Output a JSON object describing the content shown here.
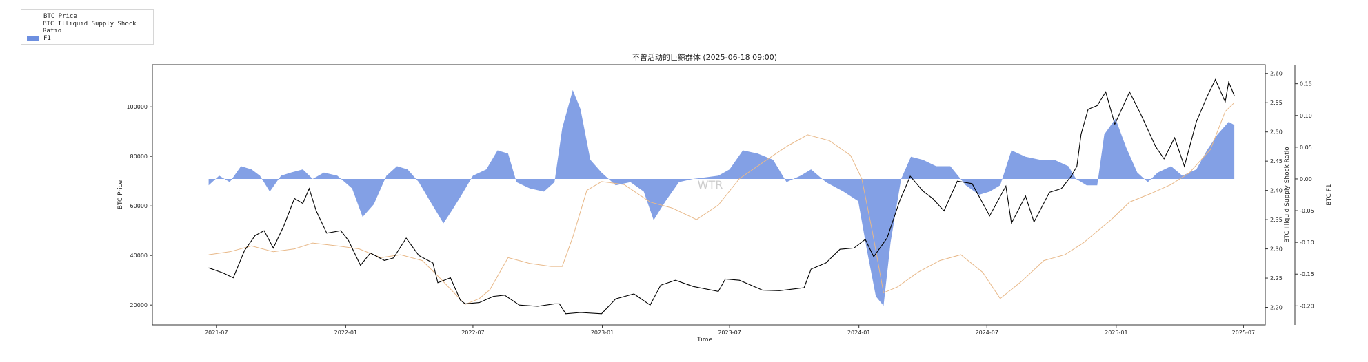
{
  "chart_data": {
    "type": "line",
    "title": "不曾活动的巨鲸群体 (2025-06-18 09:00)",
    "xlabel": "Time",
    "ylabel_left": "BTC Price",
    "ylabel_right1": "BTC Illiquid Supply Shock Ratio",
    "ylabel_right2": "BTC F1",
    "watermark": "WTR",
    "grid": false,
    "legend_placement": "outside-top-left",
    "x_ticks": [
      "2021-07",
      "2022-01",
      "2022-07",
      "2023-01",
      "2023-07",
      "2024-01",
      "2024-07",
      "2025-01",
      "2025-07"
    ],
    "y_left_ticks": [
      20000,
      40000,
      60000,
      80000,
      100000
    ],
    "y_left_tick_labels": [
      "20000",
      "40000",
      "60000",
      "80000",
      "100000"
    ],
    "y_right1_ticks": [
      2.2,
      2.25,
      2.3,
      2.35,
      2.4,
      2.45,
      2.5,
      2.55,
      2.6
    ],
    "y_right1_tick_labels": [
      "2.20",
      "2.25",
      "2.30",
      "2.35",
      "2.40",
      "2.45",
      "2.50",
      "2.55",
      "2.60"
    ],
    "y_right2_ticks": [
      -0.2,
      -0.15,
      -0.1,
      -0.05,
      0.0,
      0.05,
      0.1,
      0.15
    ],
    "y_right2_tick_labels": [
      "-0.20",
      "-0.15",
      "-0.10",
      "-0.05",
      "0.00",
      "0.05",
      "0.10",
      "0.15"
    ],
    "x_range": [
      "2021-04-01",
      "2025-08-01"
    ],
    "y_left_range": [
      12000,
      117000
    ],
    "y_right1_range": [
      2.17,
      2.615
    ],
    "y_right2_range": [
      -0.23,
      0.18
    ],
    "colors": {
      "price": "#000000",
      "ratio": "#e8b888",
      "f1": "#6d8fe0"
    },
    "series": [
      {
        "name": "BTC Price",
        "axis": "left",
        "style": "line",
        "points": [
          [
            "2021-06-20",
            35000
          ],
          [
            "2021-07-10",
            33000
          ],
          [
            "2021-07-25",
            31000
          ],
          [
            "2021-08-10",
            42000
          ],
          [
            "2021-08-25",
            48000
          ],
          [
            "2021-09-07",
            50000
          ],
          [
            "2021-09-20",
            43000
          ],
          [
            "2021-10-05",
            52000
          ],
          [
            "2021-10-20",
            63000
          ],
          [
            "2021-11-01",
            61000
          ],
          [
            "2021-11-10",
            67000
          ],
          [
            "2021-11-20",
            58000
          ],
          [
            "2021-12-05",
            49000
          ],
          [
            "2021-12-25",
            50000
          ],
          [
            "2022-01-05",
            46000
          ],
          [
            "2022-01-22",
            36000
          ],
          [
            "2022-02-05",
            41000
          ],
          [
            "2022-02-25",
            38000
          ],
          [
            "2022-03-10",
            39000
          ],
          [
            "2022-03-28",
            47000
          ],
          [
            "2022-04-15",
            40000
          ],
          [
            "2022-05-05",
            37000
          ],
          [
            "2022-05-12",
            29000
          ],
          [
            "2022-05-30",
            31000
          ],
          [
            "2022-06-13",
            22000
          ],
          [
            "2022-06-20",
            20500
          ],
          [
            "2022-07-10",
            21000
          ],
          [
            "2022-07-30",
            23500
          ],
          [
            "2022-08-15",
            24000
          ],
          [
            "2022-09-05",
            20000
          ],
          [
            "2022-10-01",
            19500
          ],
          [
            "2022-10-25",
            20500
          ],
          [
            "2022-11-01",
            20500
          ],
          [
            "2022-11-10",
            16500
          ],
          [
            "2022-12-01",
            17000
          ],
          [
            "2022-12-31",
            16500
          ],
          [
            "2023-01-20",
            22500
          ],
          [
            "2023-02-15",
            24500
          ],
          [
            "2023-03-10",
            20000
          ],
          [
            "2023-03-25",
            28000
          ],
          [
            "2023-04-15",
            30000
          ],
          [
            "2023-05-10",
            27500
          ],
          [
            "2023-06-15",
            25500
          ],
          [
            "2023-06-25",
            30500
          ],
          [
            "2023-07-15",
            30000
          ],
          [
            "2023-08-17",
            26000
          ],
          [
            "2023-09-10",
            25800
          ],
          [
            "2023-10-15",
            27000
          ],
          [
            "2023-10-25",
            34500
          ],
          [
            "2023-11-15",
            37000
          ],
          [
            "2023-12-05",
            42500
          ],
          [
            "2023-12-25",
            43000
          ],
          [
            "2024-01-10",
            46500
          ],
          [
            "2024-01-22",
            39500
          ],
          [
            "2024-02-10",
            47000
          ],
          [
            "2024-02-28",
            62000
          ],
          [
            "2024-03-14",
            72000
          ],
          [
            "2024-04-01",
            66000
          ],
          [
            "2024-04-15",
            63000
          ],
          [
            "2024-05-01",
            58000
          ],
          [
            "2024-05-20",
            70000
          ],
          [
            "2024-06-10",
            69000
          ],
          [
            "2024-07-05",
            56000
          ],
          [
            "2024-07-28",
            68000
          ],
          [
            "2024-08-05",
            53000
          ],
          [
            "2024-08-25",
            64000
          ],
          [
            "2024-09-06",
            53500
          ],
          [
            "2024-09-28",
            65500
          ],
          [
            "2024-10-15",
            67000
          ],
          [
            "2024-10-29",
            72000
          ],
          [
            "2024-11-06",
            76000
          ],
          [
            "2024-11-12",
            89000
          ],
          [
            "2024-11-22",
            99000
          ],
          [
            "2024-12-05",
            100500
          ],
          [
            "2024-12-17",
            106000
          ],
          [
            "2024-12-30",
            93000
          ],
          [
            "2025-01-20",
            106000
          ],
          [
            "2025-02-05",
            97000
          ],
          [
            "2025-02-26",
            84000
          ],
          [
            "2025-03-10",
            79000
          ],
          [
            "2025-03-25",
            87500
          ],
          [
            "2025-04-08",
            76000
          ],
          [
            "2025-04-25",
            94000
          ],
          [
            "2025-05-10",
            104000
          ],
          [
            "2025-05-22",
            111000
          ],
          [
            "2025-06-05",
            102000
          ],
          [
            "2025-06-10",
            110000
          ],
          [
            "2025-06-18",
            104500
          ]
        ]
      },
      {
        "name": "BTC Illiquid Supply Shock Ratio",
        "axis": "right1",
        "style": "line",
        "points": [
          [
            "2021-06-20",
            2.29
          ],
          [
            "2021-07-20",
            2.295
          ],
          [
            "2021-08-20",
            2.305
          ],
          [
            "2021-09-20",
            2.295
          ],
          [
            "2021-10-20",
            2.3
          ],
          [
            "2021-11-15",
            2.31
          ],
          [
            "2021-12-20",
            2.305
          ],
          [
            "2022-01-20",
            2.3
          ],
          [
            "2022-02-20",
            2.285
          ],
          [
            "2022-03-20",
            2.29
          ],
          [
            "2022-04-20",
            2.28
          ],
          [
            "2022-05-15",
            2.25
          ],
          [
            "2022-06-20",
            2.205
          ],
          [
            "2022-07-10",
            2.215
          ],
          [
            "2022-07-25",
            2.23
          ],
          [
            "2022-08-20",
            2.285
          ],
          [
            "2022-09-20",
            2.275
          ],
          [
            "2022-10-20",
            2.27
          ],
          [
            "2022-11-05",
            2.27
          ],
          [
            "2022-11-20",
            2.32
          ],
          [
            "2022-12-10",
            2.4
          ],
          [
            "2022-12-31",
            2.415
          ],
          [
            "2023-02-01",
            2.41
          ],
          [
            "2023-03-10",
            2.38
          ],
          [
            "2023-04-10",
            2.37
          ],
          [
            "2023-05-15",
            2.35
          ],
          [
            "2023-06-15",
            2.375
          ],
          [
            "2023-07-15",
            2.42
          ],
          [
            "2023-08-20",
            2.45
          ],
          [
            "2023-09-20",
            2.475
          ],
          [
            "2023-10-20",
            2.495
          ],
          [
            "2023-11-20",
            2.485
          ],
          [
            "2023-12-20",
            2.46
          ],
          [
            "2024-01-05",
            2.42
          ],
          [
            "2024-01-20",
            2.33
          ],
          [
            "2024-02-05",
            2.225
          ],
          [
            "2024-02-25",
            2.235
          ],
          [
            "2024-03-25",
            2.26
          ],
          [
            "2024-04-25",
            2.28
          ],
          [
            "2024-05-25",
            2.29
          ],
          [
            "2024-06-25",
            2.26
          ],
          [
            "2024-07-20",
            2.215
          ],
          [
            "2024-08-20",
            2.245
          ],
          [
            "2024-09-20",
            2.28
          ],
          [
            "2024-10-20",
            2.29
          ],
          [
            "2024-11-15",
            2.31
          ],
          [
            "2024-12-10",
            2.335
          ],
          [
            "2024-12-25",
            2.35
          ],
          [
            "2025-01-20",
            2.38
          ],
          [
            "2025-02-20",
            2.395
          ],
          [
            "2025-03-20",
            2.41
          ],
          [
            "2025-04-15",
            2.43
          ],
          [
            "2025-05-15",
            2.47
          ],
          [
            "2025-06-05",
            2.535
          ],
          [
            "2025-06-18",
            2.55
          ]
        ]
      },
      {
        "name": "F1",
        "axis": "right2",
        "style": "area",
        "points": [
          [
            "2021-06-20",
            -0.01
          ],
          [
            "2021-07-05",
            0.005
          ],
          [
            "2021-07-20",
            -0.005
          ],
          [
            "2021-08-05",
            0.02
          ],
          [
            "2021-08-20",
            0.015
          ],
          [
            "2021-09-01",
            0.005
          ],
          [
            "2021-09-15",
            -0.02
          ],
          [
            "2021-10-01",
            0.005
          ],
          [
            "2021-10-15",
            0.01
          ],
          [
            "2021-11-01",
            0.015
          ],
          [
            "2021-11-15",
            0.0
          ],
          [
            "2021-12-01",
            0.01
          ],
          [
            "2021-12-20",
            0.005
          ],
          [
            "2022-01-10",
            -0.015
          ],
          [
            "2022-01-25",
            -0.06
          ],
          [
            "2022-02-10",
            -0.04
          ],
          [
            "2022-02-28",
            0.005
          ],
          [
            "2022-03-15",
            0.02
          ],
          [
            "2022-03-30",
            0.015
          ],
          [
            "2022-04-15",
            -0.005
          ],
          [
            "2022-05-01",
            -0.035
          ],
          [
            "2022-05-20",
            -0.07
          ],
          [
            "2022-06-01",
            -0.05
          ],
          [
            "2022-06-15",
            -0.025
          ],
          [
            "2022-07-01",
            0.005
          ],
          [
            "2022-07-20",
            0.015
          ],
          [
            "2022-08-05",
            0.045
          ],
          [
            "2022-08-20",
            0.04
          ],
          [
            "2022-09-01",
            -0.005
          ],
          [
            "2022-09-20",
            -0.015
          ],
          [
            "2022-10-10",
            -0.02
          ],
          [
            "2022-10-25",
            -0.005
          ],
          [
            "2022-11-05",
            0.08
          ],
          [
            "2022-11-20",
            0.14
          ],
          [
            "2022-12-01",
            0.11
          ],
          [
            "2022-12-15",
            0.03
          ],
          [
            "2022-12-31",
            0.01
          ],
          [
            "2023-01-20",
            -0.01
          ],
          [
            "2023-02-10",
            -0.005
          ],
          [
            "2023-03-01",
            -0.02
          ],
          [
            "2023-03-15",
            -0.065
          ],
          [
            "2023-04-01",
            -0.035
          ],
          [
            "2023-04-20",
            -0.005
          ],
          [
            "2023-05-10",
            0.0
          ],
          [
            "2023-06-15",
            0.005
          ],
          [
            "2023-07-01",
            0.015
          ],
          [
            "2023-07-20",
            0.045
          ],
          [
            "2023-08-10",
            0.04
          ],
          [
            "2023-09-01",
            0.03
          ],
          [
            "2023-09-20",
            -0.005
          ],
          [
            "2023-10-10",
            0.005
          ],
          [
            "2023-10-25",
            0.015
          ],
          [
            "2023-11-15",
            -0.005
          ],
          [
            "2023-12-10",
            -0.02
          ],
          [
            "2023-12-31",
            -0.035
          ],
          [
            "2024-01-12",
            -0.11
          ],
          [
            "2024-01-25",
            -0.185
          ],
          [
            "2024-02-05",
            -0.2
          ],
          [
            "2024-02-15",
            -0.1
          ],
          [
            "2024-03-01",
            0.0
          ],
          [
            "2024-03-15",
            0.035
          ],
          [
            "2024-04-01",
            0.03
          ],
          [
            "2024-04-20",
            0.02
          ],
          [
            "2024-05-10",
            0.02
          ],
          [
            "2024-06-01",
            -0.01
          ],
          [
            "2024-06-20",
            -0.025
          ],
          [
            "2024-07-05",
            -0.02
          ],
          [
            "2024-07-20",
            -0.01
          ],
          [
            "2024-08-05",
            0.045
          ],
          [
            "2024-08-25",
            0.035
          ],
          [
            "2024-09-15",
            0.03
          ],
          [
            "2024-10-05",
            0.03
          ],
          [
            "2024-10-25",
            0.02
          ],
          [
            "2024-11-05",
            0.0
          ],
          [
            "2024-11-20",
            -0.01
          ],
          [
            "2024-12-05",
            -0.01
          ],
          [
            "2024-12-15",
            0.07
          ],
          [
            "2024-12-31",
            0.095
          ],
          [
            "2025-01-15",
            0.05
          ],
          [
            "2025-01-31",
            0.01
          ],
          [
            "2025-02-15",
            -0.005
          ],
          [
            "2025-03-01",
            0.01
          ],
          [
            "2025-03-20",
            0.02
          ],
          [
            "2025-04-05",
            0.005
          ],
          [
            "2025-04-25",
            0.015
          ],
          [
            "2025-05-10",
            0.045
          ],
          [
            "2025-05-25",
            0.07
          ],
          [
            "2025-06-10",
            0.09
          ],
          [
            "2025-06-18",
            0.085
          ]
        ]
      }
    ]
  }
}
